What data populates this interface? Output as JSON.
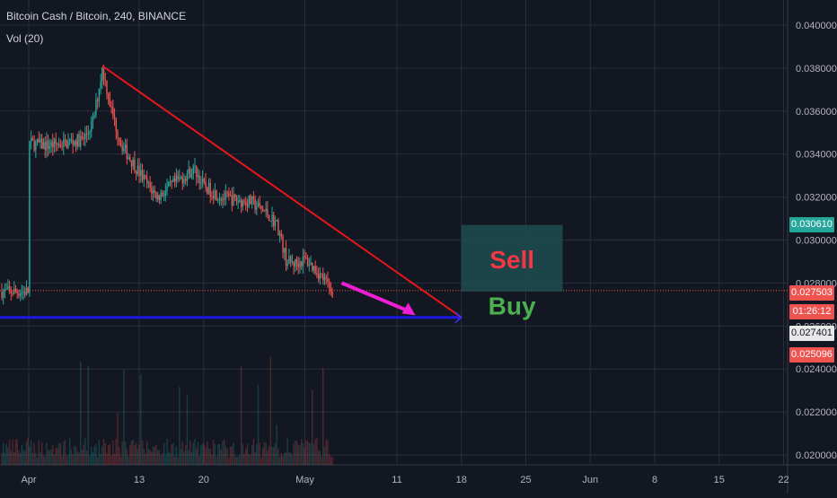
{
  "header": {
    "title": "Bitcoin Cash / Bitcoin, 240, BINANCE",
    "volume": "Vol (20)"
  },
  "colors": {
    "background": "#131722",
    "grid": "#2a2e39",
    "up": "#26a69a",
    "down": "#ef5350",
    "trendline": "#e5161c",
    "support_line": "#1c18e6",
    "arrow": "#f01fd6",
    "last_price": "#26a69a",
    "countdown": "#ef5350",
    "target_label": "#ef5350"
  },
  "labels": {
    "sell": "Sell",
    "buy": "Buy",
    "last_price": "0.030610",
    "bid_price": "0.027503",
    "countdown": "01:26:12",
    "support_price": "0.027401",
    "target_price": "0.025096"
  },
  "chart_data": {
    "type": "candlestick",
    "symbol": "Bitcoin Cash / Bitcoin",
    "interval": "240",
    "exchange": "BINANCE",
    "indicator": "Vol (20)",
    "y_ticks": [
      "0.040000",
      "0.038000",
      "0.036000",
      "0.034000",
      "0.032000",
      "0.030000",
      "0.028000",
      "0.026000",
      "0.024000",
      "0.022000",
      "0.020000"
    ],
    "x_ticks": [
      "Apr",
      "13",
      "20",
      "May",
      "11",
      "18",
      "25",
      "Jun",
      "8",
      "15",
      "22"
    ],
    "ylim": [
      0.0195,
      0.0412
    ],
    "price_path": [
      {
        "x": "Apr 1",
        "y": 0.0345
      },
      {
        "x": "Apr 3",
        "y": 0.0344
      },
      {
        "x": "Apr 5",
        "y": 0.0345
      },
      {
        "x": "Apr 7",
        "y": 0.0347
      },
      {
        "x": "Apr 8",
        "y": 0.0355
      },
      {
        "x": "Apr 9",
        "y": 0.038
      },
      {
        "x": "Apr 10",
        "y": 0.036
      },
      {
        "x": "Apr 11",
        "y": 0.0345
      },
      {
        "x": "Apr 12",
        "y": 0.0338
      },
      {
        "x": "Apr 14",
        "y": 0.0325
      },
      {
        "x": "Apr 15",
        "y": 0.032
      },
      {
        "x": "Apr 17",
        "y": 0.0327
      },
      {
        "x": "Apr 19",
        "y": 0.0333
      },
      {
        "x": "Apr 20",
        "y": 0.0325
      },
      {
        "x": "Apr 22",
        "y": 0.032
      },
      {
        "x": "Apr 24",
        "y": 0.0318
      },
      {
        "x": "Apr 25",
        "y": 0.0318
      },
      {
        "x": "Apr 27",
        "y": 0.0312
      },
      {
        "x": "Apr 28",
        "y": 0.0307
      },
      {
        "x": "Apr 29",
        "y": 0.029
      },
      {
        "x": "Apr 30",
        "y": 0.0289
      },
      {
        "x": "May 1",
        "y": 0.0291
      },
      {
        "x": "May 2",
        "y": 0.0287
      },
      {
        "x": "May 3",
        "y": 0.0282
      },
      {
        "x": "May 4",
        "y": 0.0276
      }
    ],
    "annotations": {
      "trendline": {
        "from": {
          "x": "Apr 9",
          "y": 0.0381
        },
        "to": {
          "x": "May 18",
          "y": 0.0264
        }
      },
      "support_line": {
        "y": 0.0264
      },
      "arrow": {
        "from": {
          "x": "May 5",
          "y": 0.028
        },
        "to": {
          "x": "May 13",
          "y": 0.0265
        }
      },
      "sell_zone": {
        "x_from": "May 18",
        "x_to": "May 29",
        "y_from": 0.0276,
        "y_to": 0.0307,
        "text": "Sell"
      },
      "buy_zone": {
        "x_from": "May 18",
        "x_to": "May 29",
        "y_from": 0.0264,
        "y_to": 0.0276,
        "text": "Buy"
      }
    }
  }
}
